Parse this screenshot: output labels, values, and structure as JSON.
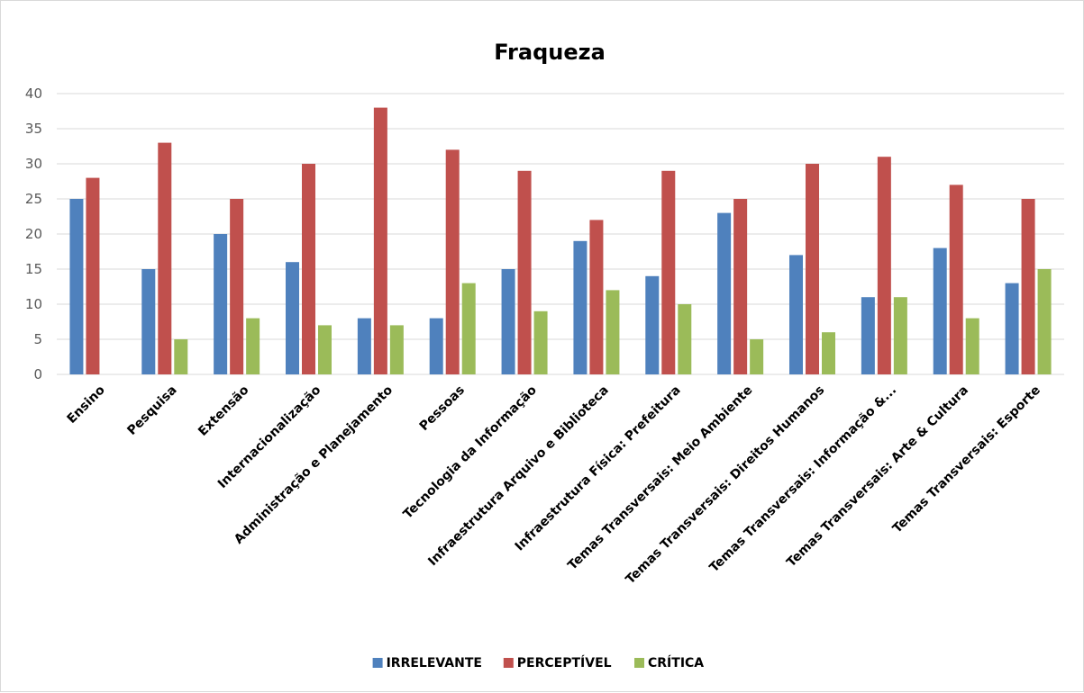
{
  "chart_data": {
    "type": "bar",
    "title": "Fraqueza",
    "xlabel": "",
    "ylabel": "",
    "ylim": [
      0,
      40
    ],
    "yticks": [
      0,
      5,
      10,
      15,
      20,
      25,
      30,
      35,
      40
    ],
    "grid": true,
    "legend_position": "bottom",
    "categories": [
      "Ensino",
      "Pesquisa",
      "Extensão",
      "Internacionalização",
      "Administração e Planejamento",
      "Pessoas",
      "Tecnologia da Informação",
      "Infraestrutura Arquivo e Biblioteca",
      "Infraestrutura Física: Prefeitura",
      "Temas Transversais: Meio Ambiente",
      "Temas Transversais: Direitos Humanos",
      "Temas Transversais: Informação &...",
      "Temas Transversais: Arte & Cultura",
      "Temas Transversais: Esporte"
    ],
    "series": [
      {
        "name": "IRRELEVANTE",
        "color": "#4f81bd",
        "values": [
          25,
          15,
          20,
          16,
          8,
          8,
          15,
          19,
          14,
          23,
          17,
          11,
          18,
          13
        ]
      },
      {
        "name": "PERCEPTÍVEL",
        "color": "#c0504d",
        "values": [
          28,
          33,
          25,
          30,
          38,
          32,
          29,
          22,
          29,
          25,
          30,
          31,
          27,
          25
        ]
      },
      {
        "name": "CRÍTICA",
        "color": "#9bbb59",
        "values": [
          0,
          5,
          8,
          7,
          7,
          13,
          9,
          12,
          10,
          5,
          6,
          11,
          8,
          15
        ]
      }
    ]
  }
}
